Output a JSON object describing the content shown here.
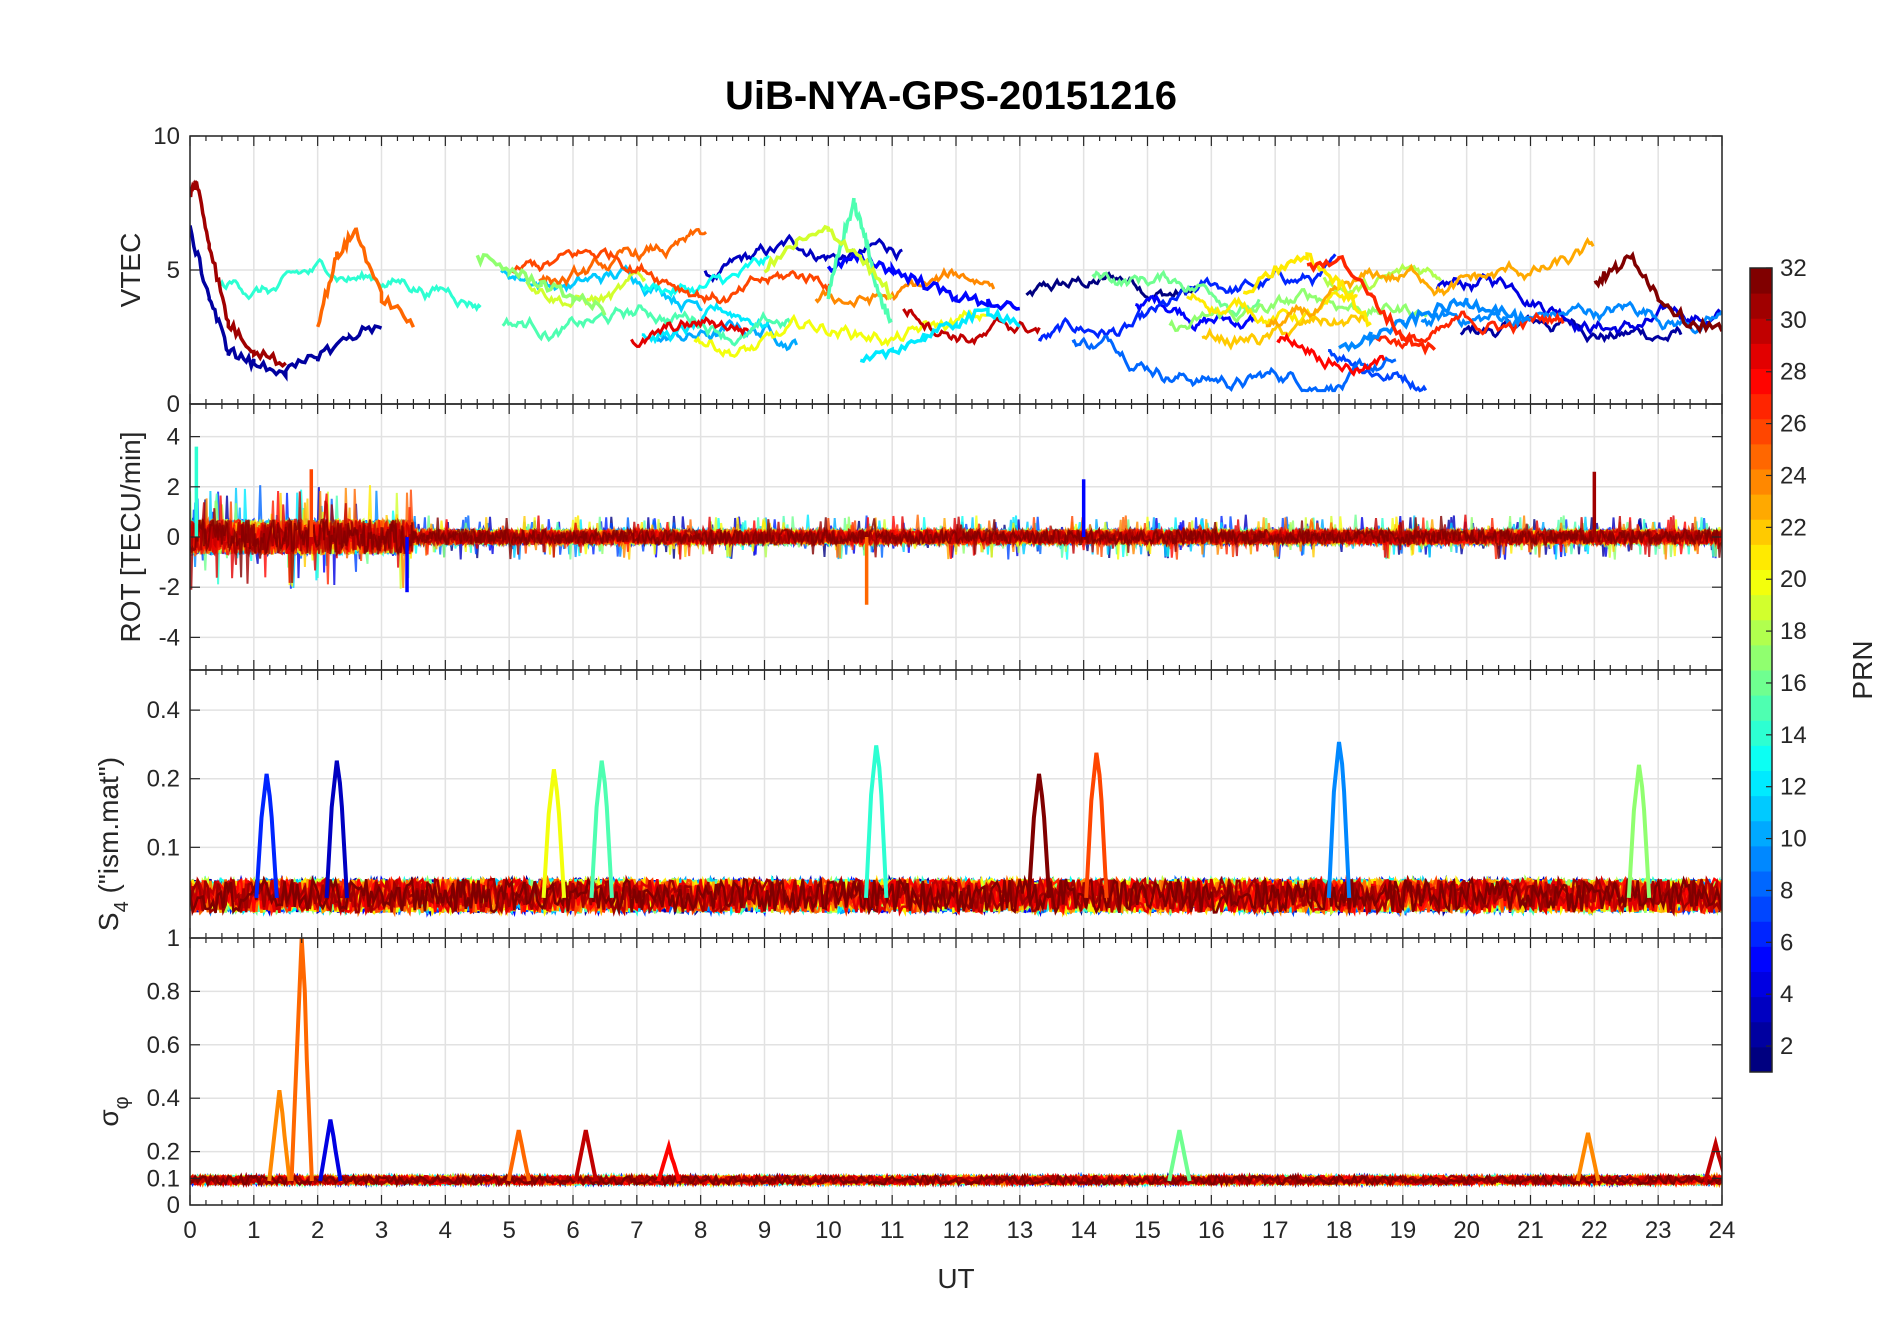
{
  "title": "UiB-NYA-GPS-20151216",
  "xlabel": "UT",
  "x_ticks": [
    0,
    1,
    2,
    3,
    4,
    5,
    6,
    7,
    8,
    9,
    10,
    11,
    12,
    13,
    14,
    15,
    16,
    17,
    18,
    19,
    20,
    21,
    22,
    23,
    24
  ],
  "colorbar": {
    "label": "PRN",
    "ticks": [
      2,
      4,
      6,
      8,
      10,
      12,
      14,
      16,
      18,
      20,
      22,
      24,
      26,
      28,
      30,
      32
    ],
    "range": [
      1,
      32
    ],
    "colormap": "jet"
  },
  "chart_data": [
    {
      "type": "line",
      "panel": "VTEC",
      "ylabel": "VTEC",
      "xlim": [
        0,
        24
      ],
      "ylim": [
        0,
        10
      ],
      "y_ticks": [
        0,
        5,
        10
      ],
      "grid": true,
      "series_note": "one trace per GPS satellite, colored by PRN",
      "series": [
        {
          "prn": 2,
          "x": [
            0,
            0.3,
            0.6,
            1,
            1.5,
            2,
            2.5,
            3
          ],
          "y": [
            6.5,
            4,
            2,
            1.5,
            1.2,
            1.8,
            2.5,
            3
          ]
        },
        {
          "prn": 5,
          "x": [
            10,
            10.5,
            11,
            11.5,
            12,
            12.5,
            13
          ],
          "y": [
            5,
            5.5,
            5,
            4.5,
            4,
            3.8,
            3.5
          ]
        },
        {
          "prn": 9,
          "x": [
            18,
            18.5,
            19,
            19.5,
            20,
            20.5,
            21
          ],
          "y": [
            2,
            2.5,
            3,
            3.5,
            3.8,
            3.5,
            3
          ]
        },
        {
          "prn": 12,
          "x": [
            10.5,
            11,
            11.5,
            12,
            12.5,
            13
          ],
          "y": [
            1.5,
            2,
            2.5,
            3,
            3.5,
            3
          ]
        },
        {
          "prn": 15,
          "x": [
            10,
            10.2,
            10.4,
            10.6,
            10.8,
            11
          ],
          "y": [
            4,
            6,
            7.5,
            6,
            4,
            3
          ]
        },
        {
          "prn": 17,
          "x": [
            4.5,
            5,
            5.5,
            6,
            6.5
          ],
          "y": [
            5.5,
            5,
            4.5,
            4,
            3.5
          ]
        },
        {
          "prn": 19,
          "x": [
            9,
            9.5,
            10,
            10.5,
            11
          ],
          "y": [
            5,
            6,
            6.5,
            5.5,
            4
          ]
        },
        {
          "prn": 21,
          "x": [
            16.5,
            17,
            17.5,
            18,
            18.5
          ],
          "y": [
            4,
            5,
            5.5,
            4.5,
            3
          ]
        },
        {
          "prn": 25,
          "x": [
            2,
            2.3,
            2.6,
            3,
            3.5
          ],
          "y": [
            3,
            5.5,
            6.5,
            4,
            3
          ]
        },
        {
          "prn": 27,
          "x": [
            17.5,
            18,
            18.5,
            19,
            19.5
          ],
          "y": [
            5,
            5.5,
            4,
            2.5,
            2
          ]
        },
        {
          "prn": 31,
          "x": [
            0,
            0.1,
            0.3,
            0.6,
            1,
            1.5
          ],
          "y": [
            7.8,
            8.3,
            6,
            3,
            2,
            1.5
          ]
        },
        {
          "prn": 32,
          "x": [
            22,
            22.3,
            22.6,
            23,
            23.5,
            24
          ],
          "y": [
            4.5,
            5,
            5.5,
            4,
            3,
            2.8
          ]
        }
      ]
    },
    {
      "type": "line",
      "panel": "ROT",
      "ylabel": "ROT [TECU/min]",
      "xlim": [
        0,
        24
      ],
      "ylim": [
        -5.3,
        5.3
      ],
      "y_ticks": [
        -4,
        -2,
        0,
        2,
        4
      ],
      "grid": true,
      "series_note": "rate of TEC, mostly within ±1 with spikes up to about ±3",
      "spikes": [
        {
          "x": 0.1,
          "y": 3.6,
          "prn": 14
        },
        {
          "x": 1.9,
          "y": 2.7,
          "prn": 26
        },
        {
          "x": 10.6,
          "y": -2.7,
          "prn": 25
        },
        {
          "x": 14.0,
          "y": 2.3,
          "prn": 5
        },
        {
          "x": 22.0,
          "y": 2.6,
          "prn": 31
        },
        {
          "x": 3.4,
          "y": -2.2,
          "prn": 5
        }
      ]
    },
    {
      "type": "line",
      "panel": "S4",
      "ylabel_main": "S",
      "ylabel_sub": "4",
      "ylabel_rest": " (\"ism.mat\")",
      "xlim": [
        0,
        24
      ],
      "ylim": [
        0.04,
        0.6
      ],
      "y_ticks": [
        0.1,
        0.2,
        0.4
      ],
      "y_scale": "log",
      "grid": true,
      "baseline": 0.06,
      "peaks": [
        {
          "x": 1.2,
          "y": 0.21,
          "prn": 6
        },
        {
          "x": 2.3,
          "y": 0.24,
          "prn": 3
        },
        {
          "x": 5.7,
          "y": 0.22,
          "prn": 20
        },
        {
          "x": 6.45,
          "y": 0.24,
          "prn": 15
        },
        {
          "x": 10.75,
          "y": 0.28,
          "prn": 14
        },
        {
          "x": 13.3,
          "y": 0.21,
          "prn": 32
        },
        {
          "x": 14.2,
          "y": 0.26,
          "prn": 26
        },
        {
          "x": 18.0,
          "y": 0.29,
          "prn": 9
        },
        {
          "x": 22.7,
          "y": 0.23,
          "prn": 17
        }
      ]
    },
    {
      "type": "line",
      "panel": "sigma_phi",
      "ylabel_main": "σ",
      "ylabel_sub": "φ",
      "xlim": [
        0,
        24
      ],
      "ylim": [
        0,
        1
      ],
      "y_ticks": [
        0,
        0.1,
        0.2,
        0.4,
        0.6,
        0.8,
        1
      ],
      "grid": true,
      "baseline": 0.09,
      "peaks": [
        {
          "x": 1.4,
          "y": 0.43,
          "prn": 24
        },
        {
          "x": 1.75,
          "y": 1.0,
          "prn": 25
        },
        {
          "x": 2.2,
          "y": 0.32,
          "prn": 4
        },
        {
          "x": 5.15,
          "y": 0.28,
          "prn": 25
        },
        {
          "x": 6.2,
          "y": 0.28,
          "prn": 30
        },
        {
          "x": 7.5,
          "y": 0.22,
          "prn": 28
        },
        {
          "x": 15.5,
          "y": 0.28,
          "prn": 16
        },
        {
          "x": 21.9,
          "y": 0.27,
          "prn": 24
        },
        {
          "x": 23.9,
          "y": 0.23,
          "prn": 30
        }
      ]
    }
  ]
}
